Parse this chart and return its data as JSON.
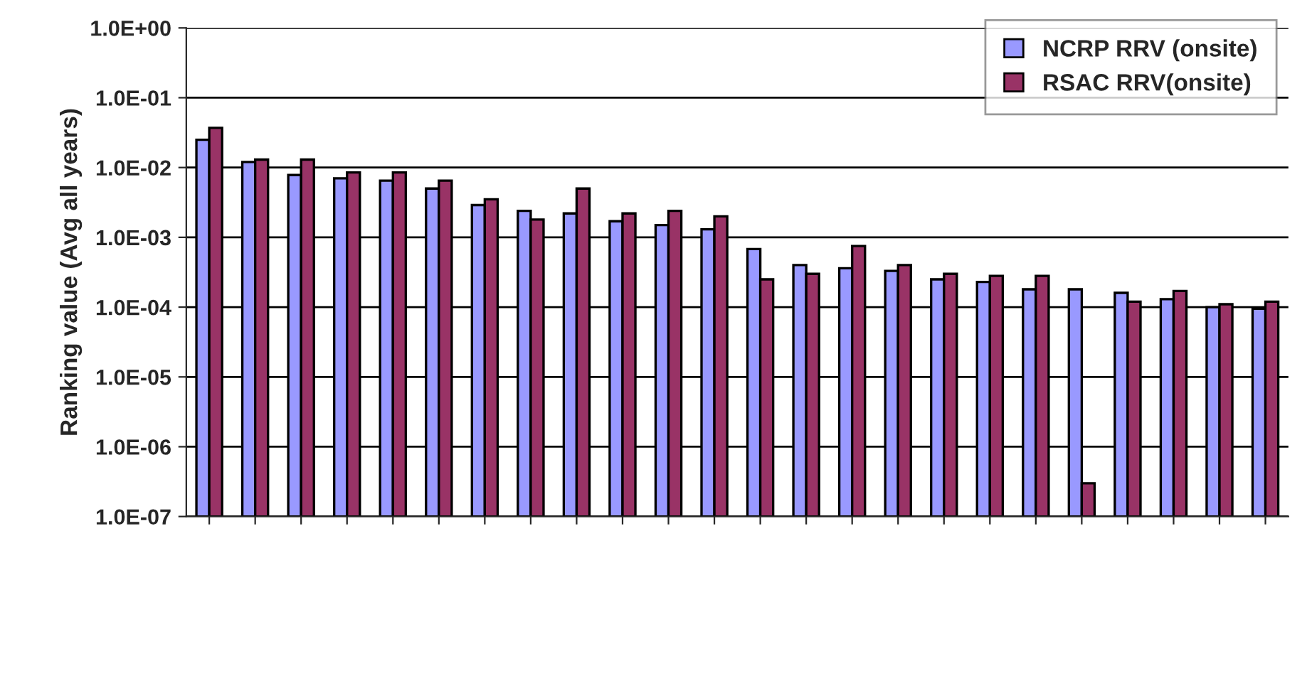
{
  "chart_data": {
    "type": "bar",
    "ylabel": "Ranking value (Avg all years)",
    "categories": [
      null,
      null,
      null,
      null,
      null,
      null,
      null,
      null,
      null,
      null,
      null,
      null,
      null,
      null,
      null,
      null,
      null,
      null,
      null,
      null,
      null,
      null,
      null,
      null
    ],
    "series": [
      {
        "name": "NCRP RRV (onsite)",
        "color": "#9999ff",
        "values": [
          0.025,
          0.012,
          0.0078,
          0.007,
          0.0065,
          0.005,
          0.0029,
          0.0024,
          0.0022,
          0.0017,
          0.0015,
          0.0013,
          0.00068,
          0.0004,
          0.00036,
          0.00033,
          0.00025,
          0.00023,
          0.00018,
          0.00018,
          0.00016,
          0.00013,
          0.0001,
          9.5e-05
        ]
      },
      {
        "name": "RSAC RRV(onsite)",
        "color": "#993366",
        "values": [
          0.037,
          0.013,
          0.013,
          0.0085,
          0.0085,
          0.0065,
          0.0035,
          0.0018,
          0.005,
          0.0022,
          0.0024,
          0.002,
          0.00025,
          0.0003,
          0.00075,
          0.0004,
          0.0003,
          0.00028,
          0.00028,
          3e-07,
          0.00012,
          0.00017,
          0.00011,
          0.00012
        ]
      }
    ],
    "log": "y",
    "ylim": [
      1e-07,
      1
    ],
    "yticks": [
      {
        "value": 1e-07,
        "label": "1.0E-07"
      },
      {
        "value": 1e-06,
        "label": "1.0E-06"
      },
      {
        "value": 1e-05,
        "label": "1.0E-05"
      },
      {
        "value": 0.0001,
        "label": "1.0E-04"
      },
      {
        "value": 0.001,
        "label": "1.0E-03"
      },
      {
        "value": 0.01,
        "label": "1.0E-02"
      },
      {
        "value": 0.1,
        "label": "1.0E-01"
      },
      {
        "value": 1,
        "label": "1.0E+00"
      }
    ],
    "grid": "y",
    "legend": "top right"
  }
}
